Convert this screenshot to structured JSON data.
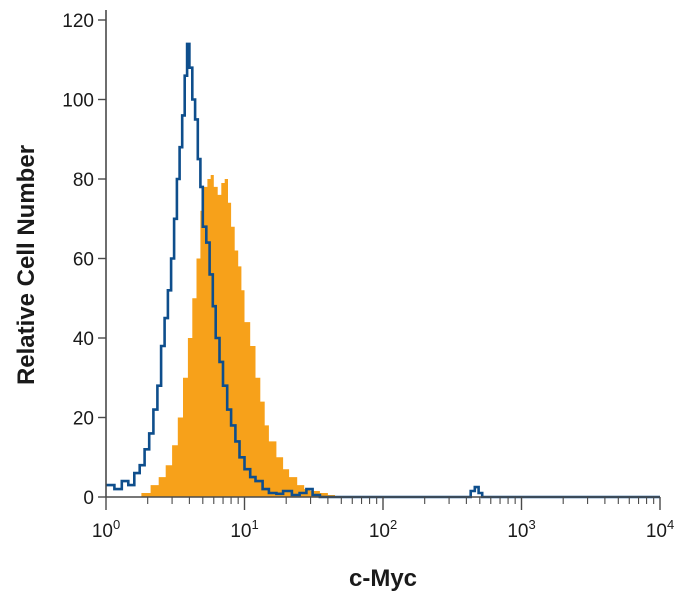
{
  "chart_data": {
    "type": "area",
    "title": "",
    "xlabel": "c-Myc",
    "ylabel": "Relative Cell Number",
    "x_scale": "log",
    "xlim": [
      1,
      10000
    ],
    "ylim": [
      0,
      120
    ],
    "x_ticks": [
      {
        "base": "10",
        "exp": "0"
      },
      {
        "base": "10",
        "exp": "1"
      },
      {
        "base": "10",
        "exp": "2"
      },
      {
        "base": "10",
        "exp": "3"
      },
      {
        "base": "10",
        "exp": "4"
      }
    ],
    "y_ticks": [
      "0",
      "20",
      "40",
      "60",
      "80",
      "100",
      "120"
    ],
    "grid": false,
    "legend": "none",
    "series": [
      {
        "style": "filled",
        "color": "#F7A11A",
        "x": [
          1.0,
          1.4,
          1.8,
          2.1,
          2.4,
          2.7,
          3.0,
          3.3,
          3.6,
          3.9,
          4.2,
          4.5,
          4.8,
          5.1,
          5.4,
          5.7,
          6.0,
          6.4,
          6.8,
          7.2,
          7.6,
          8.0,
          8.5,
          9.0,
          9.5,
          10.0,
          11.0,
          12.0,
          13.0,
          14.0,
          15.0,
          17.0,
          19.0,
          21.0,
          24.0,
          27.0,
          30.0,
          35.0,
          40.0,
          45.0
        ],
        "y": [
          0,
          0,
          1,
          3,
          5,
          8,
          13,
          20,
          30,
          40,
          50,
          60,
          72,
          78,
          80,
          81,
          78,
          76,
          79,
          80,
          74,
          68,
          62,
          58,
          52,
          44,
          38,
          30,
          24,
          18,
          14,
          10,
          7,
          5,
          3,
          2,
          1.5,
          1,
          0.5,
          0
        ]
      },
      {
        "style": "outline",
        "color": "#0E4E8C",
        "x": [
          1.0,
          1.15,
          1.3,
          1.45,
          1.6,
          1.75,
          1.9,
          2.05,
          2.2,
          2.35,
          2.5,
          2.65,
          2.8,
          2.95,
          3.1,
          3.25,
          3.4,
          3.55,
          3.7,
          3.85,
          4.0,
          4.2,
          4.4,
          4.6,
          4.8,
          5.0,
          5.3,
          5.6,
          5.9,
          6.2,
          6.6,
          7.0,
          7.5,
          8.0,
          8.6,
          9.2,
          10.0,
          11.0,
          12.0,
          13.5,
          15.0,
          17.0,
          19.0,
          22.0,
          25.0,
          28.0,
          31.0,
          35.0,
          50.0,
          100.0,
          200.0,
          400.0,
          430.0,
          460.0,
          490.0,
          520.0,
          1000.0,
          3000.0,
          10000.0
        ],
        "y": [
          3,
          2,
          4,
          3,
          6,
          8,
          12,
          16,
          22,
          28,
          38,
          45,
          52,
          60,
          70,
          80,
          88,
          96,
          106,
          114,
          108,
          100,
          95,
          85,
          78,
          68,
          64,
          56,
          48,
          40,
          34,
          28,
          22,
          18,
          14,
          10,
          7,
          5,
          4,
          2,
          1,
          0.8,
          1.5,
          0.5,
          1,
          2,
          0.5,
          0,
          0,
          0,
          0,
          0,
          1.5,
          2.5,
          1,
          0,
          0,
          0,
          0
        ]
      }
    ]
  }
}
